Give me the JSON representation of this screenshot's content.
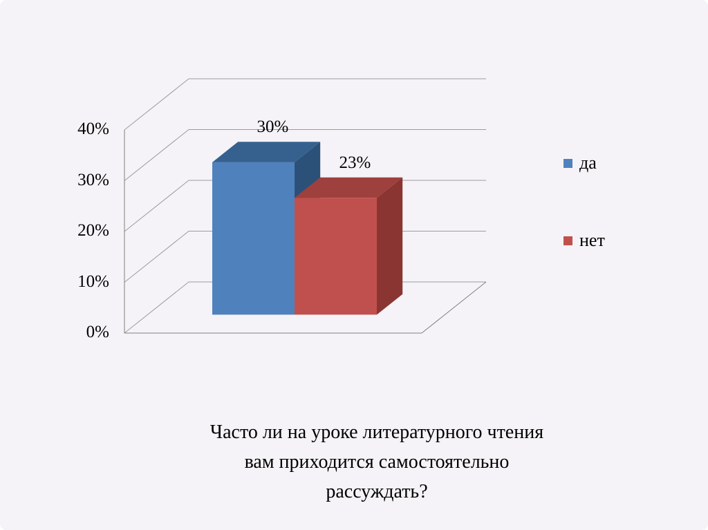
{
  "slide": {
    "background_color": "#f5f3f7",
    "caption_lines": [
      "Часто ли на уроке литературного чтения",
      "вам приходится самостоятельно",
      "рассуждать?"
    ]
  },
  "chart_data": {
    "type": "bar",
    "subtype": "3d-clustered-column",
    "title": "Часто ли на уроке литературного чтения вам приходится самостоятельно рассуждать?",
    "categories": [
      "да",
      "нет"
    ],
    "values": [
      30,
      23
    ],
    "value_labels": [
      "30%",
      "23%"
    ],
    "ylim": [
      0,
      40
    ],
    "y_tick_step": 10,
    "y_ticks": [
      "0%",
      "10%",
      "20%",
      "30%",
      "40%"
    ],
    "grid": true,
    "legend_position": "right",
    "series": [
      {
        "name": "да",
        "value": 30,
        "label": "30%",
        "color": "#4f81bd",
        "color_top": "#36618f",
        "color_side": "#2c5179"
      },
      {
        "name": "нет",
        "value": 23,
        "label": "23%",
        "color": "#c0504d",
        "color_top": "#9e403d",
        "color_side": "#8a3532"
      }
    ],
    "grid_color": "#9b9b9b",
    "axis_color": "#7f7f7f",
    "text_color": "#000000"
  }
}
